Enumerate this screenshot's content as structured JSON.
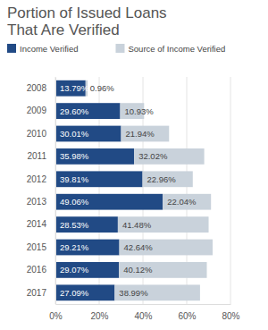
{
  "chart_data": {
    "type": "bar",
    "title": "Portion of Issued Loans\nThat Are Verified",
    "orientation": "horizontal",
    "stacked": true,
    "data_labels": true,
    "grid": true,
    "legend": "top",
    "categories": [
      "2008",
      "2009",
      "2010",
      "2011",
      "2012",
      "2013",
      "2014",
      "2015",
      "2016",
      "2017"
    ],
    "series": [
      {
        "name": "Income Verified",
        "color": "#214a85",
        "values": [
          13.79,
          29.6,
          30.01,
          35.98,
          39.81,
          49.06,
          28.53,
          29.21,
          29.07,
          27.09
        ],
        "value_labels": [
          "13.79%",
          "29.60%",
          "30.01%",
          "35.98%",
          "39.81%",
          "49.06%",
          "28.53%",
          "29.21%",
          "29.07%",
          "27.09%"
        ]
      },
      {
        "name": "Source of Income Verified",
        "color": "#c9d2db",
        "values": [
          0.96,
          10.93,
          21.94,
          32.02,
          22.96,
          22.04,
          41.48,
          42.64,
          40.12,
          38.99
        ],
        "value_labels": [
          "0.96%",
          "10.93%",
          "21.94%",
          "32.02%",
          "22.96%",
          "22.04%",
          "41.48%",
          "42.64%",
          "40.12%",
          "38.99%"
        ]
      }
    ],
    "xlim": [
      0,
      80
    ],
    "xticks": [
      {
        "value": 0,
        "label": "0%"
      },
      {
        "value": 20,
        "label": "20%"
      },
      {
        "value": 40,
        "label": "40%"
      },
      {
        "value": 60,
        "label": "60%"
      },
      {
        "value": 80,
        "label": "80%"
      }
    ]
  }
}
